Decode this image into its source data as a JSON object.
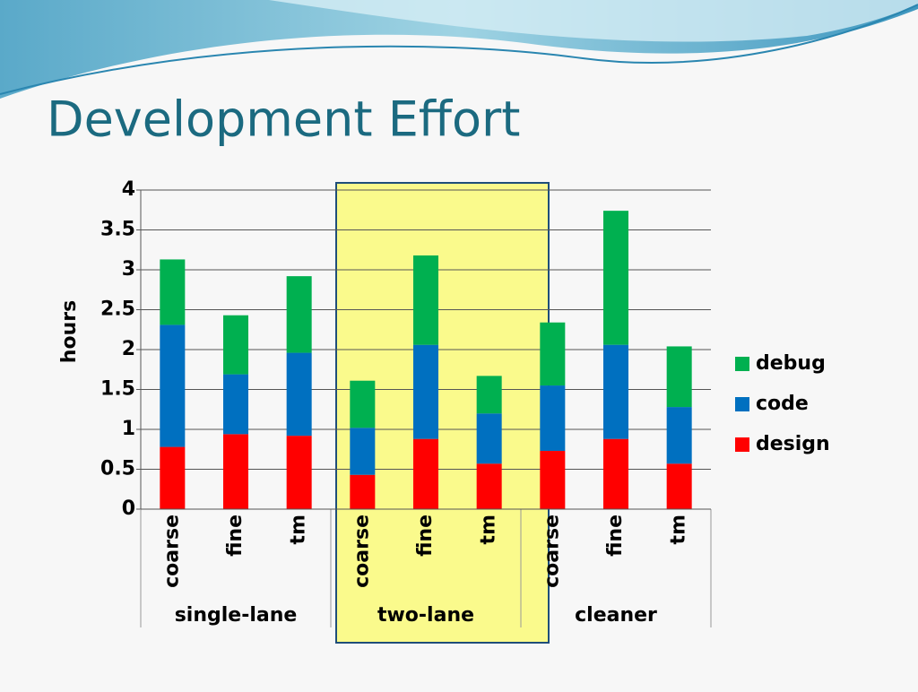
{
  "chart_data": {
    "type": "stacked-bar",
    "title": "Development Effort",
    "y_label": "hours",
    "categories": [
      "coarse",
      "fine",
      "tm",
      "coarse",
      "fine",
      "tm",
      "coarse",
      "fine",
      "tm"
    ],
    "groups": [
      "single-lane",
      "two-lane",
      "cleaner"
    ],
    "highlight": "two-lane",
    "series": [
      {
        "name": "design",
        "color": "#ff0000",
        "values": [
          0.78,
          0.94,
          0.92,
          0.43,
          0.88,
          0.57,
          0.73,
          0.88,
          0.57
        ]
      },
      {
        "name": "code",
        "color": "#0070c0",
        "values": [
          1.53,
          0.75,
          1.04,
          0.59,
          1.18,
          0.63,
          0.82,
          1.18,
          0.71
        ]
      },
      {
        "name": "debug",
        "color": "#00b050",
        "values": [
          0.82,
          0.74,
          0.96,
          0.59,
          1.12,
          0.47,
          0.79,
          1.68,
          0.76
        ]
      }
    ],
    "ylim": [
      0,
      4
    ],
    "yticks": [
      0,
      0.5,
      1,
      1.5,
      2,
      2.5,
      3,
      3.5,
      4
    ],
    "grid": true,
    "legend": "right"
  }
}
